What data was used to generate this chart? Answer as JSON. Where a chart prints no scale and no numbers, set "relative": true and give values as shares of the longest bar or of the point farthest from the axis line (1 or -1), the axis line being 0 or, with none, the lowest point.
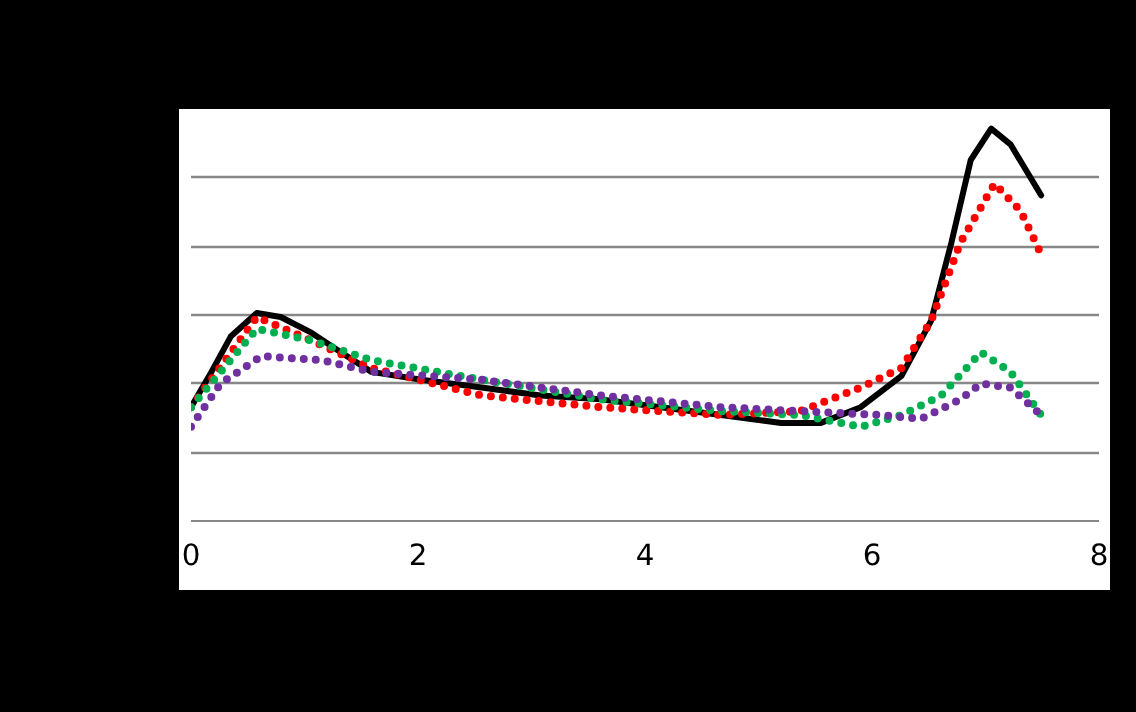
{
  "chart_data": {
    "type": "line",
    "relative": true,
    "xlim": [
      0,
      8
    ],
    "xticks": [
      0,
      2,
      4,
      6,
      8
    ],
    "grid": "y",
    "series": [
      {
        "color": "#000000",
        "line_style": "solid",
        "x": [
          0,
          0.18,
          0.35,
          0.58,
          0.79,
          1.06,
          1.32,
          1.59,
          2.03,
          2.56,
          3.08,
          3.61,
          4.14,
          4.67,
          5.2,
          5.55,
          5.9,
          6.26,
          6.52,
          6.7,
          6.87,
          7.05,
          7.22,
          7.49
        ],
        "values": [
          0.29,
          0.38,
          0.47,
          0.53,
          0.52,
          0.48,
          0.43,
          0.38,
          0.36,
          0.34,
          0.32,
          0.31,
          0.29,
          0.27,
          0.25,
          0.25,
          0.29,
          0.37,
          0.51,
          0.71,
          0.92,
          1.0,
          0.96,
          0.83
        ]
      },
      {
        "color": "#ff0000",
        "line_style": "dotted",
        "x": [
          0,
          0.58,
          1.06,
          1.59,
          2.56,
          3.61,
          4.67,
          5.37,
          5.9,
          6.26,
          6.52,
          6.78,
          7.08,
          7.31,
          7.49
        ],
        "values": [
          0.29,
          0.52,
          0.46,
          0.39,
          0.32,
          0.29,
          0.27,
          0.28,
          0.34,
          0.39,
          0.51,
          0.71,
          0.86,
          0.79,
          0.68
        ]
      },
      {
        "color": "#00b050",
        "line_style": "dotted",
        "x": [
          0,
          0.58,
          1.06,
          1.59,
          2.56,
          3.61,
          4.67,
          5.37,
          5.9,
          6.26,
          6.61,
          6.96,
          7.22,
          7.49
        ],
        "values": [
          0.29,
          0.49,
          0.46,
          0.41,
          0.36,
          0.31,
          0.28,
          0.27,
          0.24,
          0.27,
          0.32,
          0.43,
          0.38,
          0.27
        ]
      },
      {
        "color": "#7030a0",
        "line_style": "dotted",
        "x": [
          0,
          0.26,
          0.62,
          1.15,
          1.59,
          2.56,
          3.61,
          4.67,
          5.37,
          6.08,
          6.43,
          6.78,
          6.96,
          7.22,
          7.49
        ],
        "values": [
          0.24,
          0.35,
          0.42,
          0.41,
          0.38,
          0.36,
          0.32,
          0.29,
          0.28,
          0.27,
          0.26,
          0.31,
          0.35,
          0.34,
          0.27
        ]
      }
    ]
  }
}
